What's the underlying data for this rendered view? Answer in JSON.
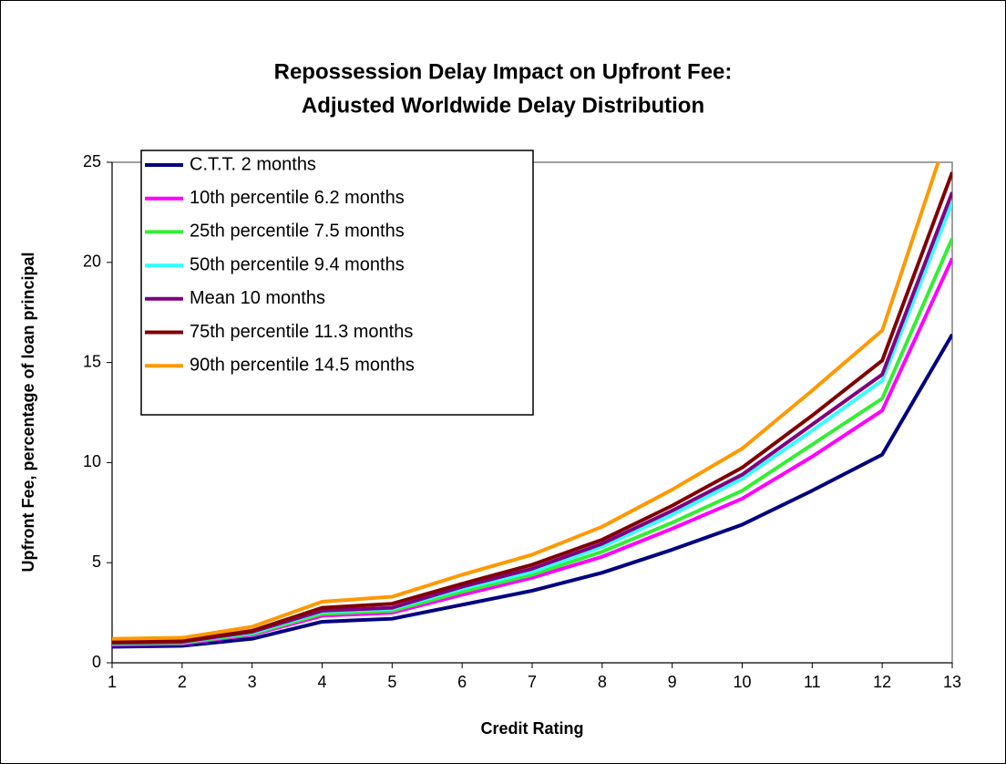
{
  "chart_data": {
    "type": "line",
    "title": [
      "Repossession Delay Impact on Upfront Fee:",
      "Adjusted Worldwide Delay Distribution"
    ],
    "x_label": "Credit Rating",
    "y_label": "Upfront Fee, percentage of loan principal",
    "x": [
      1,
      2,
      3,
      4,
      5,
      6,
      7,
      8,
      9,
      10,
      11,
      12,
      13
    ],
    "xlim": [
      1,
      13
    ],
    "xticks": [
      1,
      2,
      3,
      4,
      5,
      6,
      7,
      8,
      9,
      10,
      11,
      12,
      13
    ],
    "ylim": [
      0,
      25
    ],
    "yticks": [
      0,
      5,
      10,
      15,
      20,
      25
    ],
    "grid": false,
    "legend": "upper left",
    "series": [
      {
        "name": "C.T.T. 2 months",
        "color": "#000080",
        "values": [
          0.8,
          0.85,
          1.2,
          2.05,
          2.2,
          2.9,
          3.6,
          4.5,
          5.65,
          6.9,
          8.6,
          10.4,
          16.4
        ]
      },
      {
        "name": "10th percentile 6.2 months",
        "color": "#ff00ff",
        "values": [
          0.9,
          0.95,
          1.4,
          2.35,
          2.5,
          3.4,
          4.25,
          5.3,
          6.7,
          8.2,
          10.3,
          12.6,
          20.2
        ]
      },
      {
        "name": "25th percentile 7.5 months",
        "color": "#33ee33",
        "values": [
          0.95,
          1.0,
          1.45,
          2.45,
          2.6,
          3.55,
          4.4,
          5.55,
          7.0,
          8.6,
          10.9,
          13.2,
          21.2
        ]
      },
      {
        "name": "50th percentile 9.4 months",
        "color": "#33ffff",
        "values": [
          1.0,
          1.05,
          1.5,
          2.55,
          2.7,
          3.7,
          4.55,
          5.8,
          7.4,
          9.2,
          11.6,
          14.1,
          23.0
        ]
      },
      {
        "name": "Mean 10 months",
        "color": "#800080",
        "values": [
          1.0,
          1.05,
          1.55,
          2.6,
          2.75,
          3.8,
          4.7,
          5.95,
          7.6,
          9.4,
          11.9,
          14.4,
          23.5
        ]
      },
      {
        "name": "75th percentile 11.3 months",
        "color": "#800000",
        "values": [
          1.05,
          1.1,
          1.6,
          2.75,
          2.95,
          3.95,
          4.9,
          6.15,
          7.85,
          9.75,
          12.35,
          15.1,
          24.5
        ]
      },
      {
        "name": "90th percentile 14.5 months",
        "color": "#ff9900",
        "values": [
          1.2,
          1.25,
          1.8,
          3.05,
          3.3,
          4.4,
          5.4,
          6.8,
          8.65,
          10.7,
          13.6,
          16.6,
          27.1
        ]
      }
    ]
  }
}
